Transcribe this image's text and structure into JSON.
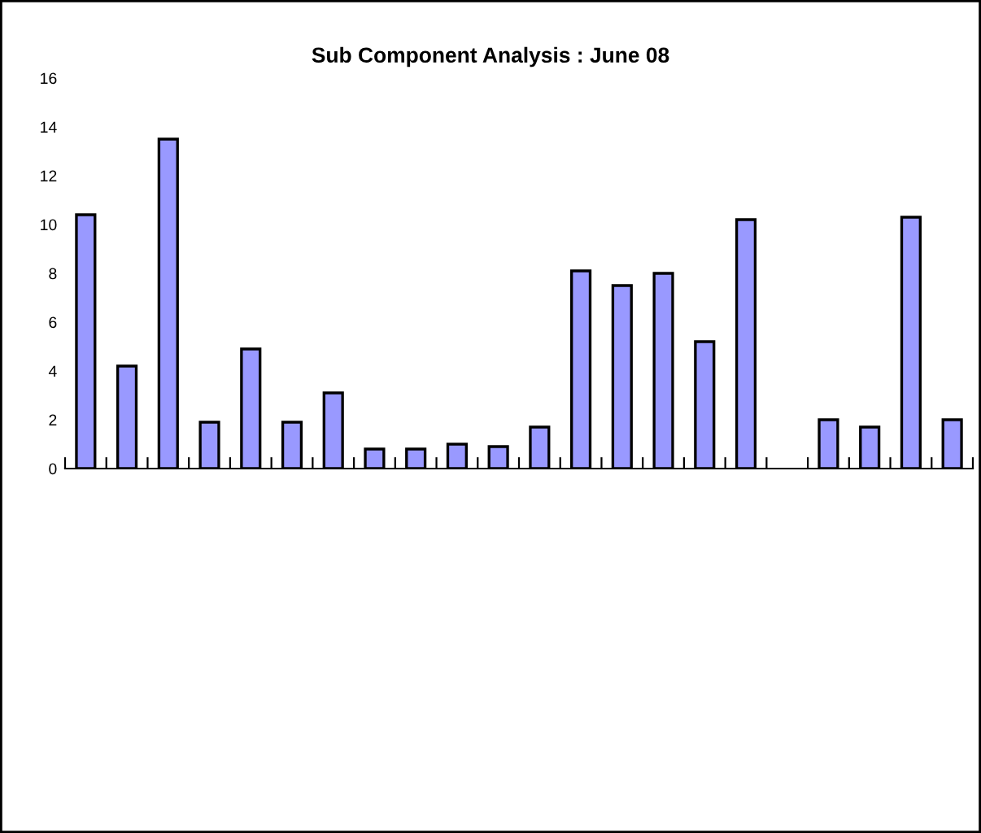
{
  "chart_data": {
    "type": "bar",
    "title": "Sub Component Analysis : June 08",
    "categories": [
      null,
      null,
      null,
      null,
      null,
      null,
      null,
      null,
      null,
      null,
      null,
      null,
      null,
      null,
      null,
      null,
      null,
      null,
      null,
      null,
      null,
      null
    ],
    "values": [
      10.4,
      4.2,
      13.5,
      1.9,
      4.9,
      1.9,
      3.1,
      0.8,
      0.8,
      1.0,
      0.9,
      1.7,
      8.1,
      7.5,
      8.0,
      5.2,
      10.2,
      null,
      2.0,
      1.7,
      10.3,
      2.0
    ],
    "color": "#9999ff",
    "ylim": [
      0,
      16
    ],
    "yticks": [
      0,
      2,
      4,
      6,
      8,
      10,
      12,
      14,
      16
    ],
    "grid": false,
    "legend": false
  }
}
